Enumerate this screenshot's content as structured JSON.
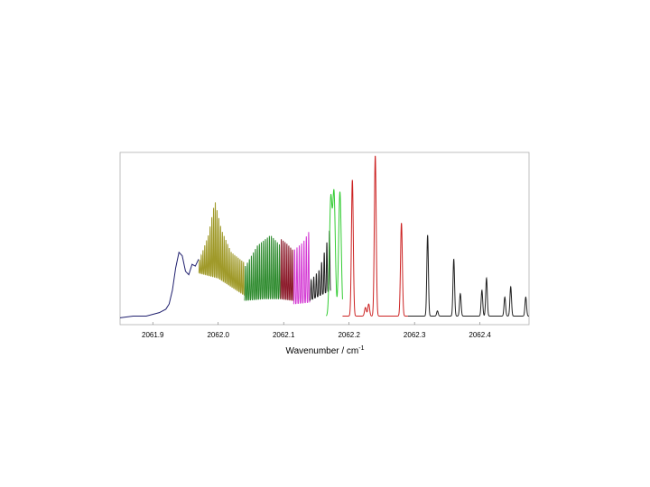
{
  "chart_data": {
    "type": "line",
    "xlabel": "Wavenumber / cm",
    "xlabel_superscript": "-1",
    "ylabel": "",
    "xlim": [
      2061.85,
      2062.475
    ],
    "ylim": [
      0,
      1
    ],
    "grid": false,
    "legend": "none",
    "y_ticks_shown": false,
    "x_ticks": [
      {
        "value": 2061.9,
        "label": "2061.9"
      },
      {
        "value": 2062.0,
        "label": "2062.0"
      },
      {
        "value": 2062.1,
        "label": "2062.1"
      },
      {
        "value": 2062.2,
        "label": "2062.2"
      },
      {
        "value": 2062.3,
        "label": "2062.3"
      },
      {
        "value": 2062.4,
        "label": "2062.4"
      }
    ],
    "baseline": 0.05,
    "series": [
      {
        "color": "#1f1f6e",
        "x": [
          2061.85,
          2061.87,
          2061.89,
          2061.91,
          2061.92,
          2061.925,
          2061.93,
          2061.935,
          2061.94,
          2061.945,
          2061.95,
          2061.955,
          2061.96,
          2061.965,
          2061.97
        ],
        "y": [
          0.04,
          0.05,
          0.05,
          0.07,
          0.09,
          0.12,
          0.2,
          0.33,
          0.42,
          0.4,
          0.31,
          0.29,
          0.35,
          0.34,
          0.38
        ]
      },
      {
        "color": "#a09a2a",
        "x_range": [
          2061.97,
          2062.04
        ],
        "envelope": [
          [
            2061.97,
            0.36
          ],
          [
            2061.985,
            0.52
          ],
          [
            2061.995,
            0.72
          ],
          [
            2062.005,
            0.55
          ],
          [
            2062.02,
            0.42
          ],
          [
            2062.04,
            0.36
          ]
        ],
        "trough": [
          [
            2061.97,
            0.3
          ],
          [
            2062.0,
            0.27
          ],
          [
            2062.04,
            0.17
          ]
        ],
        "oscillations": 26
      },
      {
        "color": "#2e8b2e",
        "x_range": [
          2062.04,
          2062.095
        ],
        "envelope": [
          [
            2062.04,
            0.33
          ],
          [
            2062.06,
            0.46
          ],
          [
            2062.08,
            0.52
          ],
          [
            2062.095,
            0.46
          ]
        ],
        "trough": [
          [
            2062.04,
            0.14
          ],
          [
            2062.07,
            0.15
          ],
          [
            2062.095,
            0.15
          ]
        ],
        "oscillations": 18
      },
      {
        "color": "#8b1a2a",
        "x_range": [
          2062.095,
          2062.115
        ],
        "envelope": [
          [
            2062.095,
            0.5
          ],
          [
            2062.105,
            0.47
          ],
          [
            2062.115,
            0.43
          ]
        ],
        "trough": [
          [
            2062.095,
            0.15
          ],
          [
            2062.115,
            0.14
          ]
        ],
        "oscillations": 7
      },
      {
        "color": "#d43cd4",
        "x_range": [
          2062.115,
          2062.14
        ],
        "envelope": [
          [
            2062.115,
            0.43
          ],
          [
            2062.13,
            0.48
          ],
          [
            2062.14,
            0.55
          ]
        ],
        "trough": [
          [
            2062.115,
            0.12
          ],
          [
            2062.14,
            0.13
          ]
        ],
        "oscillations": 7
      },
      {
        "color": "#222222",
        "x_range": [
          2062.14,
          2062.172
        ],
        "envelope": [
          [
            2062.14,
            0.25
          ],
          [
            2062.155,
            0.32
          ],
          [
            2062.165,
            0.46
          ],
          [
            2062.172,
            0.58
          ]
        ],
        "trough": [
          [
            2062.14,
            0.14
          ],
          [
            2062.172,
            0.2
          ]
        ],
        "oscillations": 8
      },
      {
        "color": "#33cc33",
        "x_range": [
          2062.165,
          2062.19
        ],
        "peaks": [
          [
            2062.172,
            0.72
          ],
          [
            2062.177,
            0.75
          ],
          [
            2062.186,
            0.77
          ]
        ],
        "width": 0.002
      },
      {
        "color": "#cc2222",
        "x_range": [
          2062.19,
          2062.29
        ],
        "peaks": [
          [
            2062.205,
            0.84
          ],
          [
            2062.225,
            0.1
          ],
          [
            2062.23,
            0.12
          ],
          [
            2062.24,
            0.98
          ],
          [
            2062.28,
            0.59
          ]
        ],
        "width": 0.0014
      },
      {
        "color": "#222222",
        "x_range": [
          2062.29,
          2062.475
        ],
        "peaks": [
          [
            2062.32,
            0.52
          ],
          [
            2062.335,
            0.08
          ],
          [
            2062.36,
            0.38
          ],
          [
            2062.37,
            0.18
          ],
          [
            2062.403,
            0.2
          ],
          [
            2062.41,
            0.27
          ],
          [
            2062.438,
            0.16
          ],
          [
            2062.447,
            0.22
          ],
          [
            2062.47,
            0.16
          ]
        ],
        "width": 0.0012
      }
    ]
  }
}
